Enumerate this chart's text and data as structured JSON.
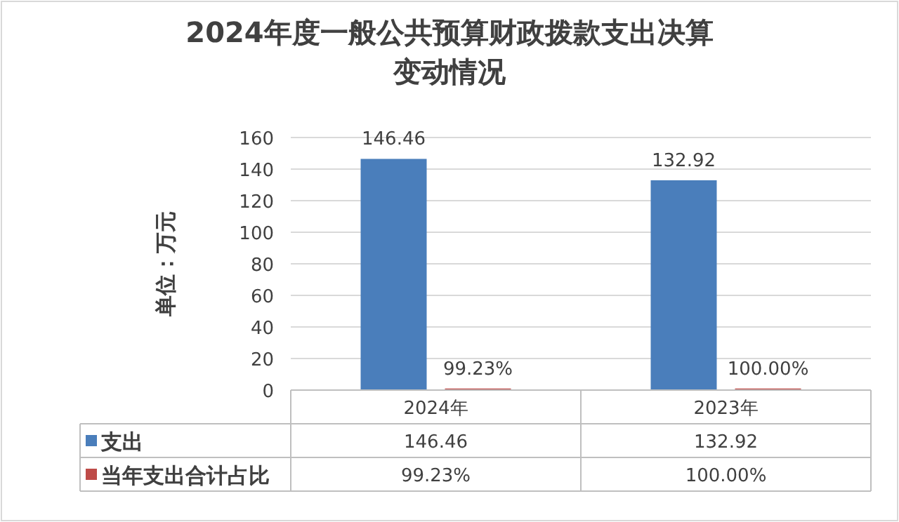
{
  "chart_data": {
    "type": "bar",
    "title": "2024年度一般公共预算财政拨款支出决算变动情况",
    "ylabel": "单位：万元",
    "categories": [
      "2024年",
      "2023年"
    ],
    "series": [
      {
        "name": "支出",
        "color": "#4a7ebb",
        "values": [
          146.46,
          132.92
        ],
        "value_labels": [
          "146.46",
          "132.92"
        ]
      },
      {
        "name": "当年支出合计占比",
        "color": "#be4b48",
        "values": [
          0.9923,
          1.0
        ],
        "value_labels": [
          "99.23%",
          "100.00%"
        ]
      }
    ],
    "ylim": [
      0,
      160
    ],
    "yticks": [
      0,
      20,
      40,
      60,
      80,
      100,
      120,
      140,
      160
    ],
    "grid": "y",
    "legend": "bottom"
  }
}
